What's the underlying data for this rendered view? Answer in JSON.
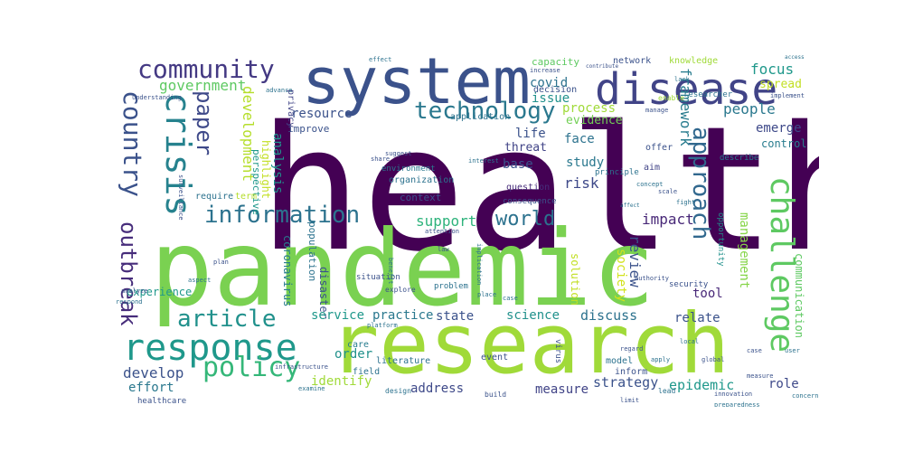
{
  "words": [
    {
      "text": "health",
      "color": "#440154"
    },
    {
      "text": "pandemic",
      "color": "#7ad151"
    },
    {
      "text": "research",
      "color": "#a0da39"
    },
    {
      "text": "system",
      "color": "#3b528b"
    },
    {
      "text": "disease",
      "color": "#414487"
    },
    {
      "text": "challenge",
      "color": "#5ec962"
    },
    {
      "text": "crisis",
      "color": "#26828e"
    },
    {
      "text": "response",
      "color": "#1f988b"
    },
    {
      "text": "community",
      "color": "#443983"
    },
    {
      "text": "information",
      "color": "#2c728e"
    },
    {
      "text": "technology",
      "color": "#2a788e"
    },
    {
      "text": "approach",
      "color": "#31688e"
    },
    {
      "text": "country",
      "color": "#3b528b"
    },
    {
      "text": "policy",
      "color": "#35b779"
    },
    {
      "text": "outbreak",
      "color": "#472d7b"
    },
    {
      "text": "article",
      "color": "#21918c"
    },
    {
      "text": "world",
      "color": "#2c728e"
    },
    {
      "text": "paper",
      "color": "#3e4989"
    },
    {
      "text": "government",
      "color": "#5ec962"
    },
    {
      "text": "development",
      "color": "#b5de2b"
    },
    {
      "text": "framework",
      "color": "#287c8e"
    },
    {
      "text": "people",
      "color": "#2a788e"
    },
    {
      "text": "focus",
      "color": "#1f988b"
    },
    {
      "text": "spread",
      "color": "#c2df23"
    },
    {
      "text": "covid",
      "color": "#2c728e"
    },
    {
      "text": "issue",
      "color": "#21918c"
    },
    {
      "text": "resource",
      "color": "#3b528b"
    },
    {
      "text": "process",
      "color": "#a0da39"
    },
    {
      "text": "evidence",
      "color": "#73d056"
    },
    {
      "text": "emerge",
      "color": "#3e4989"
    },
    {
      "text": "control",
      "color": "#287c8e"
    },
    {
      "text": "management",
      "color": "#86d549"
    },
    {
      "text": "communication",
      "color": "#5ec962"
    },
    {
      "text": "support",
      "color": "#2eb37c"
    },
    {
      "text": "impact",
      "color": "#482878"
    },
    {
      "text": "review",
      "color": "#3b528b"
    },
    {
      "text": "society",
      "color": "#d2e21b"
    },
    {
      "text": "risk",
      "color": "#3e4989"
    },
    {
      "text": "study",
      "color": "#2a788e"
    },
    {
      "text": "base",
      "color": "#3b528b"
    },
    {
      "text": "threat",
      "color": "#414487"
    },
    {
      "text": "life",
      "color": "#3b528b"
    },
    {
      "text": "face",
      "color": "#2c728e"
    },
    {
      "text": "analysis",
      "color": "#21918c"
    },
    {
      "text": "highlight",
      "color": "#c2df23"
    },
    {
      "text": "perspective",
      "color": "#1f988b"
    },
    {
      "text": "coronavirus",
      "color": "#287c8e"
    },
    {
      "text": "population",
      "color": "#2c728e"
    },
    {
      "text": "disaster",
      "color": "#3b528b"
    },
    {
      "text": "service",
      "color": "#1f988b"
    },
    {
      "text": "practice",
      "color": "#2a788e"
    },
    {
      "text": "state",
      "color": "#3b528b"
    },
    {
      "text": "science",
      "color": "#21918c"
    },
    {
      "text": "discuss",
      "color": "#2c728e"
    },
    {
      "text": "relate",
      "color": "#3b528b"
    },
    {
      "text": "tool",
      "color": "#482878"
    },
    {
      "text": "solution",
      "color": "#c2df23"
    },
    {
      "text": "role",
      "color": "#3e4989"
    },
    {
      "text": "epidemic",
      "color": "#1f988b"
    },
    {
      "text": "strategy",
      "color": "#3b528b"
    },
    {
      "text": "measure",
      "color": "#414487"
    },
    {
      "text": "address",
      "color": "#3e4989"
    },
    {
      "text": "identify",
      "color": "#a0da39"
    },
    {
      "text": "develop",
      "color": "#3b528b"
    },
    {
      "text": "effort",
      "color": "#2a788e"
    },
    {
      "text": "experience",
      "color": "#1f988b"
    },
    {
      "text": "order",
      "color": "#21918c"
    },
    {
      "text": "context",
      "color": "#3b528b"
    },
    {
      "text": "organization",
      "color": "#2c728e"
    },
    {
      "text": "question",
      "color": "#472d7b"
    },
    {
      "text": "term",
      "color": "#b5de2b"
    },
    {
      "text": "require",
      "color": "#2c728e"
    },
    {
      "text": "improve",
      "color": "#3b528b"
    },
    {
      "text": "privacy",
      "color": "#414487"
    },
    {
      "text": "application",
      "color": "#2c728e"
    },
    {
      "text": "decision",
      "color": "#3b528b"
    },
    {
      "text": "capacity",
      "color": "#5ec962"
    },
    {
      "text": "network",
      "color": "#3b528b"
    },
    {
      "text": "knowledge",
      "color": "#a0da39"
    },
    {
      "text": "researcher",
      "color": "#2c728e"
    },
    {
      "text": "opportunity",
      "color": "#21918c"
    },
    {
      "text": "security",
      "color": "#3b528b"
    },
    {
      "text": "describe",
      "color": "#287c8e"
    },
    {
      "text": "offer",
      "color": "#3b528b"
    },
    {
      "text": "aim",
      "color": "#414487"
    },
    {
      "text": "principle",
      "color": "#2c728e"
    },
    {
      "text": "consequence",
      "color": "#3b528b"
    },
    {
      "text": "environment",
      "color": "#2a788e"
    },
    {
      "text": "situation",
      "color": "#3b528b"
    },
    {
      "text": "literature",
      "color": "#2c728e"
    },
    {
      "text": "event",
      "color": "#3b528b"
    },
    {
      "text": "model",
      "color": "#2c728e"
    },
    {
      "text": "inform",
      "color": "#3b528b"
    },
    {
      "text": "field",
      "color": "#2c728e"
    },
    {
      "text": "care",
      "color": "#287c8e"
    },
    {
      "text": "virus",
      "color": "#3b528b"
    },
    {
      "text": "problem",
      "color": "#2c728e"
    },
    {
      "text": "healthcare",
      "color": "#3b528b"
    },
    {
      "text": "lead",
      "color": "#2c728e"
    },
    {
      "text": "build",
      "color": "#3b528b"
    },
    {
      "text": "design",
      "color": "#2c728e"
    },
    {
      "text": "understanding",
      "color": "#3b528b"
    },
    {
      "text": "advance",
      "color": "#2c728e"
    },
    {
      "text": "increase",
      "color": "#3b528b"
    },
    {
      "text": "effect",
      "color": "#2c728e"
    },
    {
      "text": "enable",
      "color": "#a0da39"
    },
    {
      "text": "manage",
      "color": "#3b528b"
    },
    {
      "text": "lack",
      "color": "#2c728e"
    },
    {
      "text": "implement",
      "color": "#3b528b"
    },
    {
      "text": "access",
      "color": "#2c728e"
    },
    {
      "text": "suggest",
      "color": "#3b528b"
    },
    {
      "text": "platform",
      "color": "#2c728e"
    },
    {
      "text": "explore",
      "color": "#3b528b"
    },
    {
      "text": "benefit",
      "color": "#2c728e"
    },
    {
      "text": "plan",
      "color": "#3b528b"
    },
    {
      "text": "aspect",
      "color": "#2c728e"
    },
    {
      "text": "analyze",
      "color": "#3b528b"
    },
    {
      "text": "respond",
      "color": "#2c728e"
    },
    {
      "text": "surveillance",
      "color": "#3b528b"
    },
    {
      "text": "concept",
      "color": "#2c728e"
    },
    {
      "text": "scale",
      "color": "#3b528b"
    },
    {
      "text": "fight",
      "color": "#2c728e"
    },
    {
      "text": "regard",
      "color": "#3b528b"
    },
    {
      "text": "apply",
      "color": "#2c728e"
    },
    {
      "text": "innovation",
      "color": "#3b528b"
    },
    {
      "text": "preparedness",
      "color": "#2c728e"
    },
    {
      "text": "attention",
      "color": "#3b528b"
    },
    {
      "text": "case",
      "color": "#2c728e"
    },
    {
      "text": "authority",
      "color": "#3b528b"
    },
    {
      "text": "implication",
      "color": "#2c728e"
    },
    {
      "text": "law",
      "color": "#3b528b"
    },
    {
      "text": "place",
      "color": "#2c728e"
    },
    {
      "text": "infrastructure",
      "color": "#3b528b"
    },
    {
      "text": "examine",
      "color": "#2c728e"
    },
    {
      "text": "share",
      "color": "#3b528b"
    },
    {
      "text": "interest",
      "color": "#2c728e"
    },
    {
      "text": "contribute",
      "color": "#3b528b"
    },
    {
      "text": "affect",
      "color": "#2c728e"
    },
    {
      "text": "measure",
      "color": "#3b528b"
    },
    {
      "text": "user",
      "color": "#2c728e"
    },
    {
      "text": "global",
      "color": "#3b528b"
    },
    {
      "text": "local",
      "color": "#2c728e"
    },
    {
      "text": "case",
      "color": "#3b528b"
    },
    {
      "text": "concern",
      "color": "#2c728e"
    },
    {
      "text": "limit",
      "color": "#3b528b"
    }
  ]
}
